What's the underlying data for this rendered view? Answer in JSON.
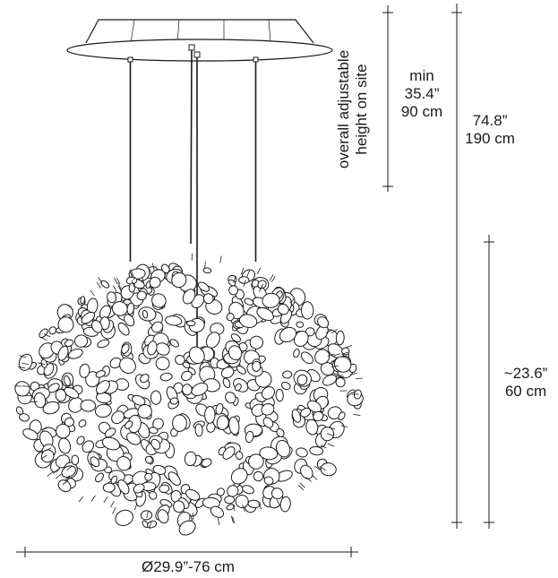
{
  "dimensions": {
    "overall_adjustable": "overall adjustable\nheight on site",
    "min_label": "min",
    "min_in": "35.4”",
    "min_cm": "90 cm",
    "total_in": "74.8”",
    "total_cm": "190 cm",
    "cluster_in": "~23.6”",
    "cluster_cm": "60 cm",
    "diameter": "Ø29.9”-76 cm"
  },
  "colors": {
    "line": "#1a1a1a",
    "canopy": "#ffffff"
  }
}
